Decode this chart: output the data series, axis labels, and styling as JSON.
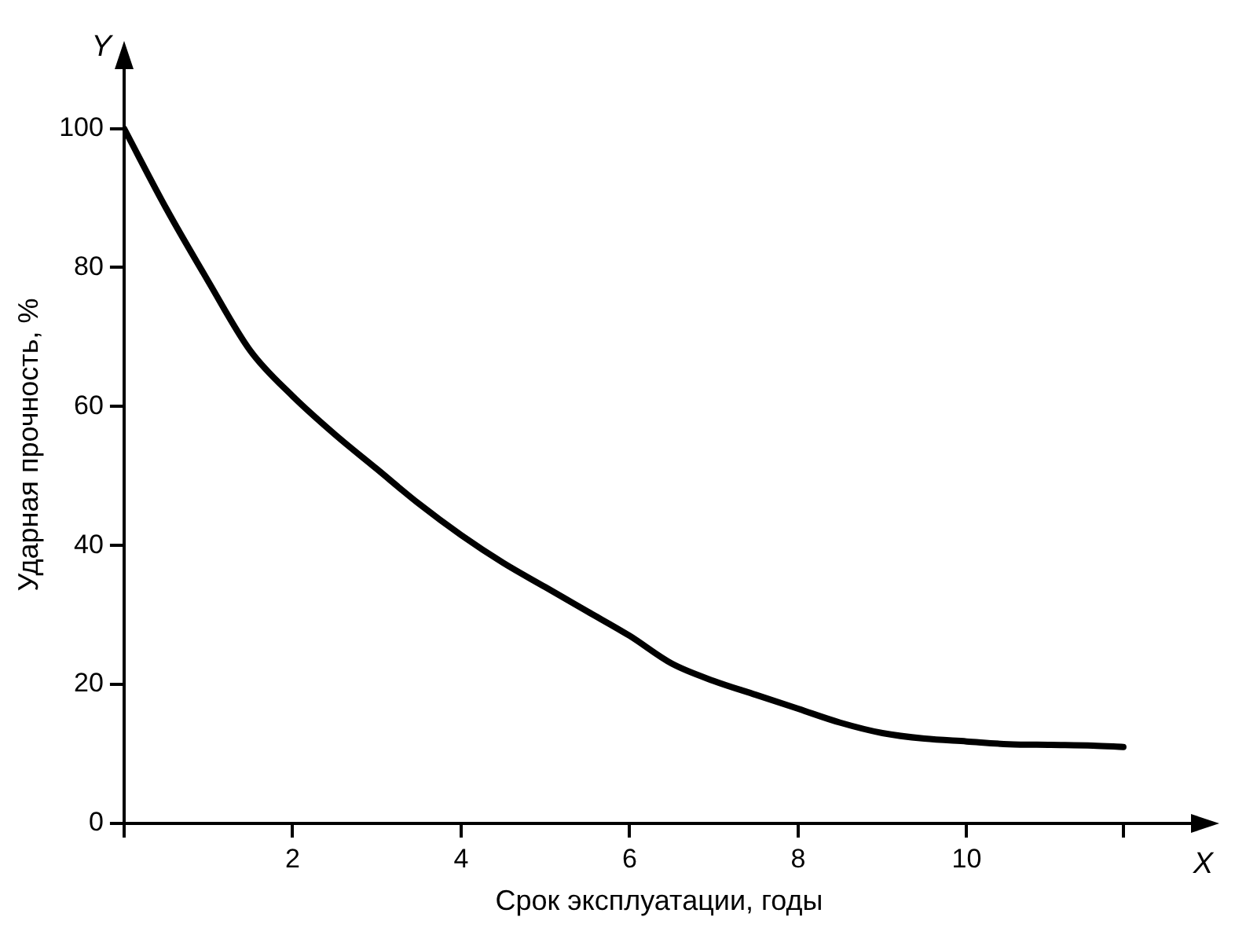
{
  "chart_data": {
    "type": "line",
    "xlabel": "Срок эксплуатации, годы",
    "ylabel": "Ударная прочность, %",
    "annotations": [
      "Y",
      "X"
    ],
    "x": [
      0,
      0.5,
      1,
      1.5,
      2,
      2.5,
      3,
      3.5,
      4,
      4.5,
      5,
      5.5,
      6,
      6.5,
      7,
      7.5,
      8,
      8.5,
      9,
      9.5,
      10,
      10.5,
      11,
      11.5,
      11.86
    ],
    "series": [
      {
        "color": "#000000",
        "values": [
          100,
          88.5,
          78,
          68,
          61.5,
          56,
          51,
          46,
          41.5,
          37.5,
          34,
          30.5,
          27,
          23,
          20.5,
          18.5,
          16.5,
          14.5,
          13,
          12.2,
          11.8,
          11.4,
          11.3,
          11.2,
          11
        ]
      }
    ],
    "xlim": [
      0,
      12.7
    ],
    "ylim": [
      0,
      109
    ],
    "xticks": [
      {
        "value": 0,
        "label": null
      },
      2,
      4,
      6,
      8,
      10,
      {
        "value": 11.86,
        "label": null
      }
    ],
    "yticks": [
      0,
      20,
      40,
      60,
      80,
      100
    ],
    "grid": false,
    "legend": false,
    "marker": "none",
    "line_style": "solid"
  }
}
